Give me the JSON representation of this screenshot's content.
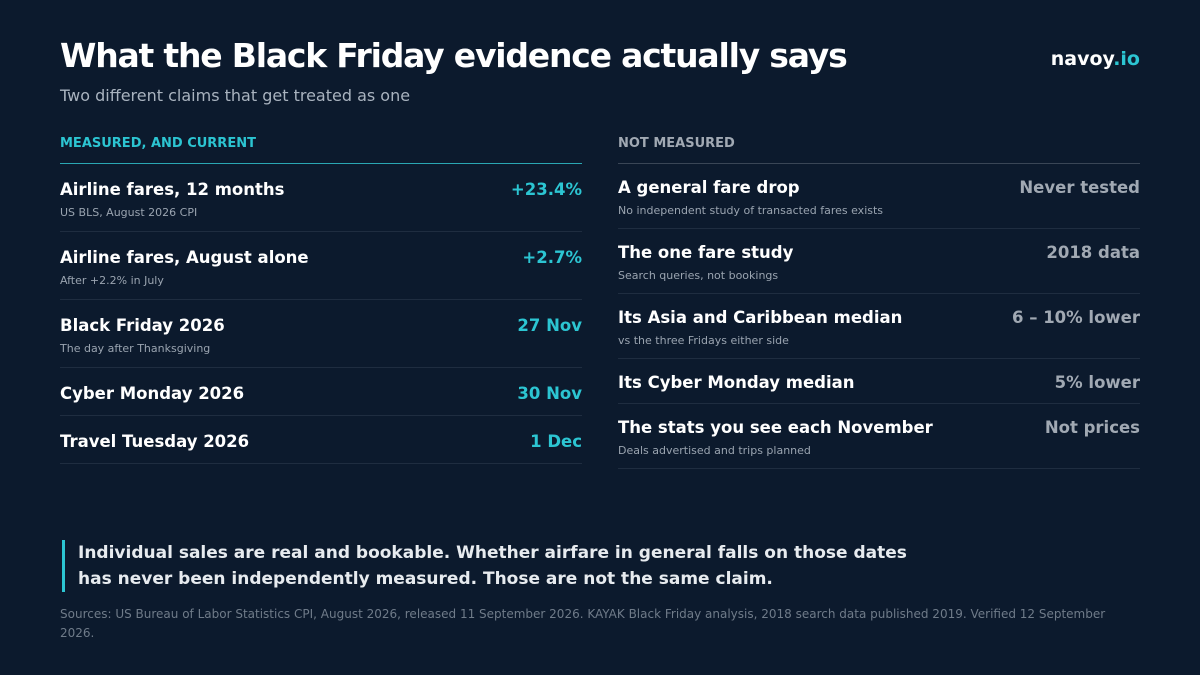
{
  "header": {
    "title": "What the Black Friday evidence actually says",
    "subtitle": "Two different claims that get treated as one",
    "logo": {
      "name": "navoy",
      "suffix": ".io"
    }
  },
  "measured": {
    "heading": "MEASURED, AND CURRENT",
    "rows": [
      {
        "label": "Airline fares, 12 months",
        "note": "US BLS, August 2026 CPI",
        "value": "+23.4%"
      },
      {
        "label": "Airline fares, August alone",
        "note": "After +2.2% in July",
        "value": "+2.7%"
      },
      {
        "label": "Black Friday 2026",
        "note": "The day after Thanksgiving",
        "value": "27 Nov"
      },
      {
        "label": "Cyber Monday 2026",
        "value": "30 Nov"
      },
      {
        "label": "Travel Tuesday 2026",
        "value": "1 Dec"
      }
    ]
  },
  "not_measured": {
    "heading": "NOT MEASURED",
    "rows": [
      {
        "label": "A general fare drop",
        "note": "No independent study of transacted fares exists",
        "value": "Never tested"
      },
      {
        "label": "The one fare study",
        "note": "Search queries, not bookings",
        "value": "2018 data"
      },
      {
        "label": "Its Asia and Caribbean median",
        "note": "vs the three Fridays either side",
        "value": "6 – 10% lower"
      },
      {
        "label": "Its Cyber Monday median",
        "value": "5% lower"
      },
      {
        "label": "The stats you see each November",
        "note": "Deals advertised and trips planned",
        "value": "Not prices"
      }
    ]
  },
  "callout": "Individual sales are real and bookable. Whether airfare in general falls on those dates has never been independently measured. Those are not the same claim.",
  "sources": "Sources: US Bureau of Labor Statistics CPI, August 2026, released 11 September 2026. KAYAK Black Friday analysis, 2018 search data published 2019. Verified 12 September 2026."
}
